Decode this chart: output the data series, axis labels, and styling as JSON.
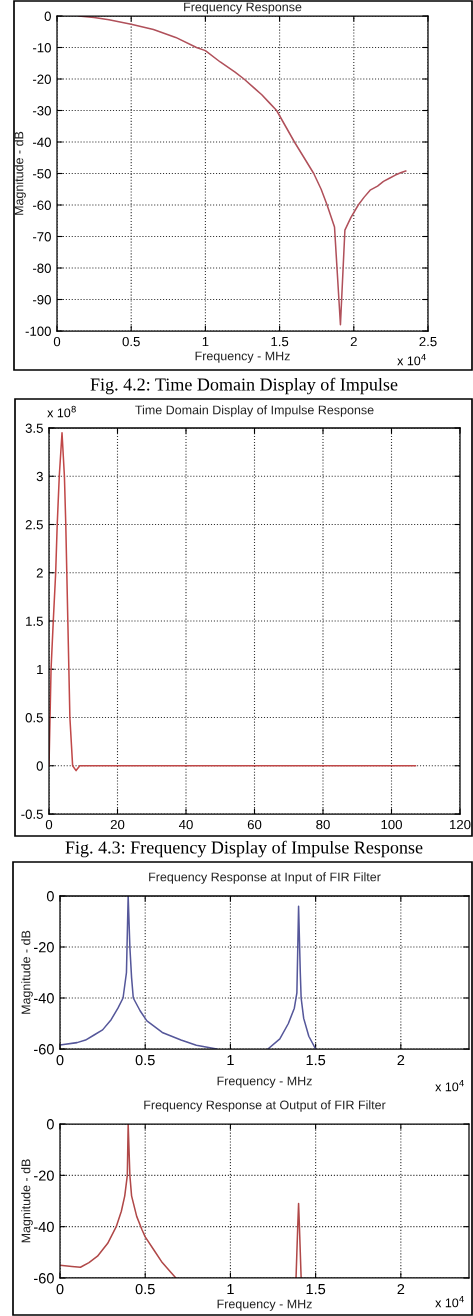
{
  "chart_data": [
    {
      "type": "line",
      "title": "Frequency Response",
      "xlabel": "Frequency - MHz",
      "ylabel": "Magnitude - dB",
      "x": [
        0.15,
        0.25,
        0.35,
        0.5,
        0.65,
        0.8,
        0.94,
        1.0,
        1.1,
        1.2,
        1.26,
        1.32,
        1.38,
        1.43,
        1.48,
        1.54,
        1.6,
        1.66,
        1.73,
        1.78,
        1.82,
        1.87,
        1.91,
        1.94,
        1.98,
        2.03,
        2.07,
        2.11,
        2.16,
        2.2,
        2.24,
        2.28,
        2.32,
        2.35
      ],
      "series": [
        {
          "color": "#b0505a",
          "values": [
            0,
            -0.5,
            -1.2,
            -2.6,
            -4.3,
            -6.8,
            -10,
            -11,
            -14.6,
            -17.8,
            -20,
            -22.5,
            -25,
            -27.5,
            -30,
            -35,
            -40,
            -44.6,
            -50,
            -55,
            -60,
            -67,
            -98,
            -68,
            -64,
            -60,
            -57.5,
            -55.3,
            -54,
            -52.5,
            -51.5,
            -50.5,
            -49.7,
            -49.2
          ]
        }
      ],
      "xlim": [
        0,
        2.5
      ],
      "xticks": [
        0,
        0.5,
        1,
        1.5,
        2,
        2.5
      ],
      "ylim": [
        -100,
        0
      ],
      "yticks": [
        -100,
        -90,
        -80,
        -70,
        -60,
        -50,
        -40,
        -30,
        -20,
        -10,
        0
      ],
      "grid": true,
      "annotations": [
        "x 10$^{4}$",
        "Fig. 4.2: Time Domain Display of Impulse"
      ]
    },
    {
      "type": "line",
      "title": "Time Domain Display of Impulse Response",
      "x": [
        0,
        0.6,
        1.25,
        1.95,
        2.4,
        3.0,
        3.8,
        4.5,
        4.9,
        5.2,
        5.5,
        5.8,
        6.1,
        6.9,
        7.9,
        9,
        107
      ],
      "series": [
        {
          "color": "#c04848",
          "values": [
            0,
            1,
            1.5,
            2,
            2.5,
            3,
            3.45,
            3,
            2.5,
            2,
            1.5,
            1,
            0.5,
            0,
            -0.05,
            0,
            0
          ]
        }
      ],
      "xlim": [
        0,
        120
      ],
      "xticks": [
        0,
        20,
        40,
        60,
        80,
        100,
        120
      ],
      "ylim": [
        -0.5,
        3.5
      ],
      "yticks": [
        -0.5,
        0,
        0.5,
        1,
        1.5,
        2,
        2.5,
        3,
        3.5
      ],
      "grid": true,
      "annotations": [
        "x 10$^{8}$",
        "Fig. 4.3: Frequency Display of Impulse Response"
      ]
    },
    {
      "type": "line",
      "title": "Frequency Response at Input of FIR Filter",
      "xlabel": "Frequency - MHz",
      "ylabel": "Magnitude - dB",
      "x": [
        0,
        0.1,
        0.15,
        0.2,
        0.25,
        0.3,
        0.34,
        0.37,
        0.39,
        0.4,
        0.41,
        0.42,
        0.43,
        0.47,
        0.51,
        0.6,
        0.71,
        0.8,
        0.92,
        1.07,
        1.22,
        1.29,
        1.34,
        1.375,
        1.39,
        1.4,
        1.41,
        1.415,
        1.43,
        1.46,
        1.5
      ],
      "series": [
        {
          "color": "#55579a",
          "values": [
            -58.4,
            -57.5,
            -56.5,
            -54.5,
            -52.5,
            -48.5,
            -44,
            -40,
            -30,
            0,
            -20,
            -32,
            -40,
            -45,
            -49,
            -53.5,
            -56.5,
            -58.5,
            -60,
            null,
            -60,
            -56,
            -50,
            -44,
            -38,
            -4,
            -30,
            -40,
            -48,
            -55,
            -60
          ]
        }
      ],
      "xlim": [
        0,
        2.4
      ],
      "xticks": [
        0,
        0.5,
        1,
        1.5,
        2
      ],
      "ylim": [
        -60,
        0
      ],
      "yticks": [
        -60,
        -40,
        -20,
        0
      ],
      "grid": true,
      "annotations": [
        "x 10$^{4}$"
      ]
    },
    {
      "type": "line",
      "title": "Frequency Response at Output of FIR Filter",
      "xlabel": "Frequency - MHz",
      "ylabel": "Magnitude - dB",
      "x": [
        0,
        0.07,
        0.12,
        0.17,
        0.22,
        0.28,
        0.33,
        0.36,
        0.38,
        0.395,
        0.4,
        0.41,
        0.42,
        0.45,
        0.48,
        0.5,
        0.55,
        0.6,
        0.68,
        1.0,
        1.385,
        1.39,
        1.395,
        1.4,
        1.405,
        1.41,
        1.415
      ],
      "series": [
        {
          "color": "#b04848",
          "values": [
            -55,
            -55.5,
            -55.8,
            -54,
            -51.5,
            -46.5,
            -40,
            -34,
            -28,
            -20,
            0,
            -20,
            -28,
            -36,
            -41,
            -44,
            -49,
            -54,
            -60,
            null,
            -60,
            -50,
            -40,
            -31,
            -40,
            -50,
            -60
          ]
        }
      ],
      "xlim": [
        0,
        2.4
      ],
      "xticks": [
        0,
        0.5,
        1,
        1.5,
        2
      ],
      "ylim": [
        -60,
        0
      ],
      "yticks": [
        -60,
        -40,
        -20,
        0
      ],
      "grid": true,
      "annotations": [
        "x 10$^{4}$"
      ]
    }
  ]
}
